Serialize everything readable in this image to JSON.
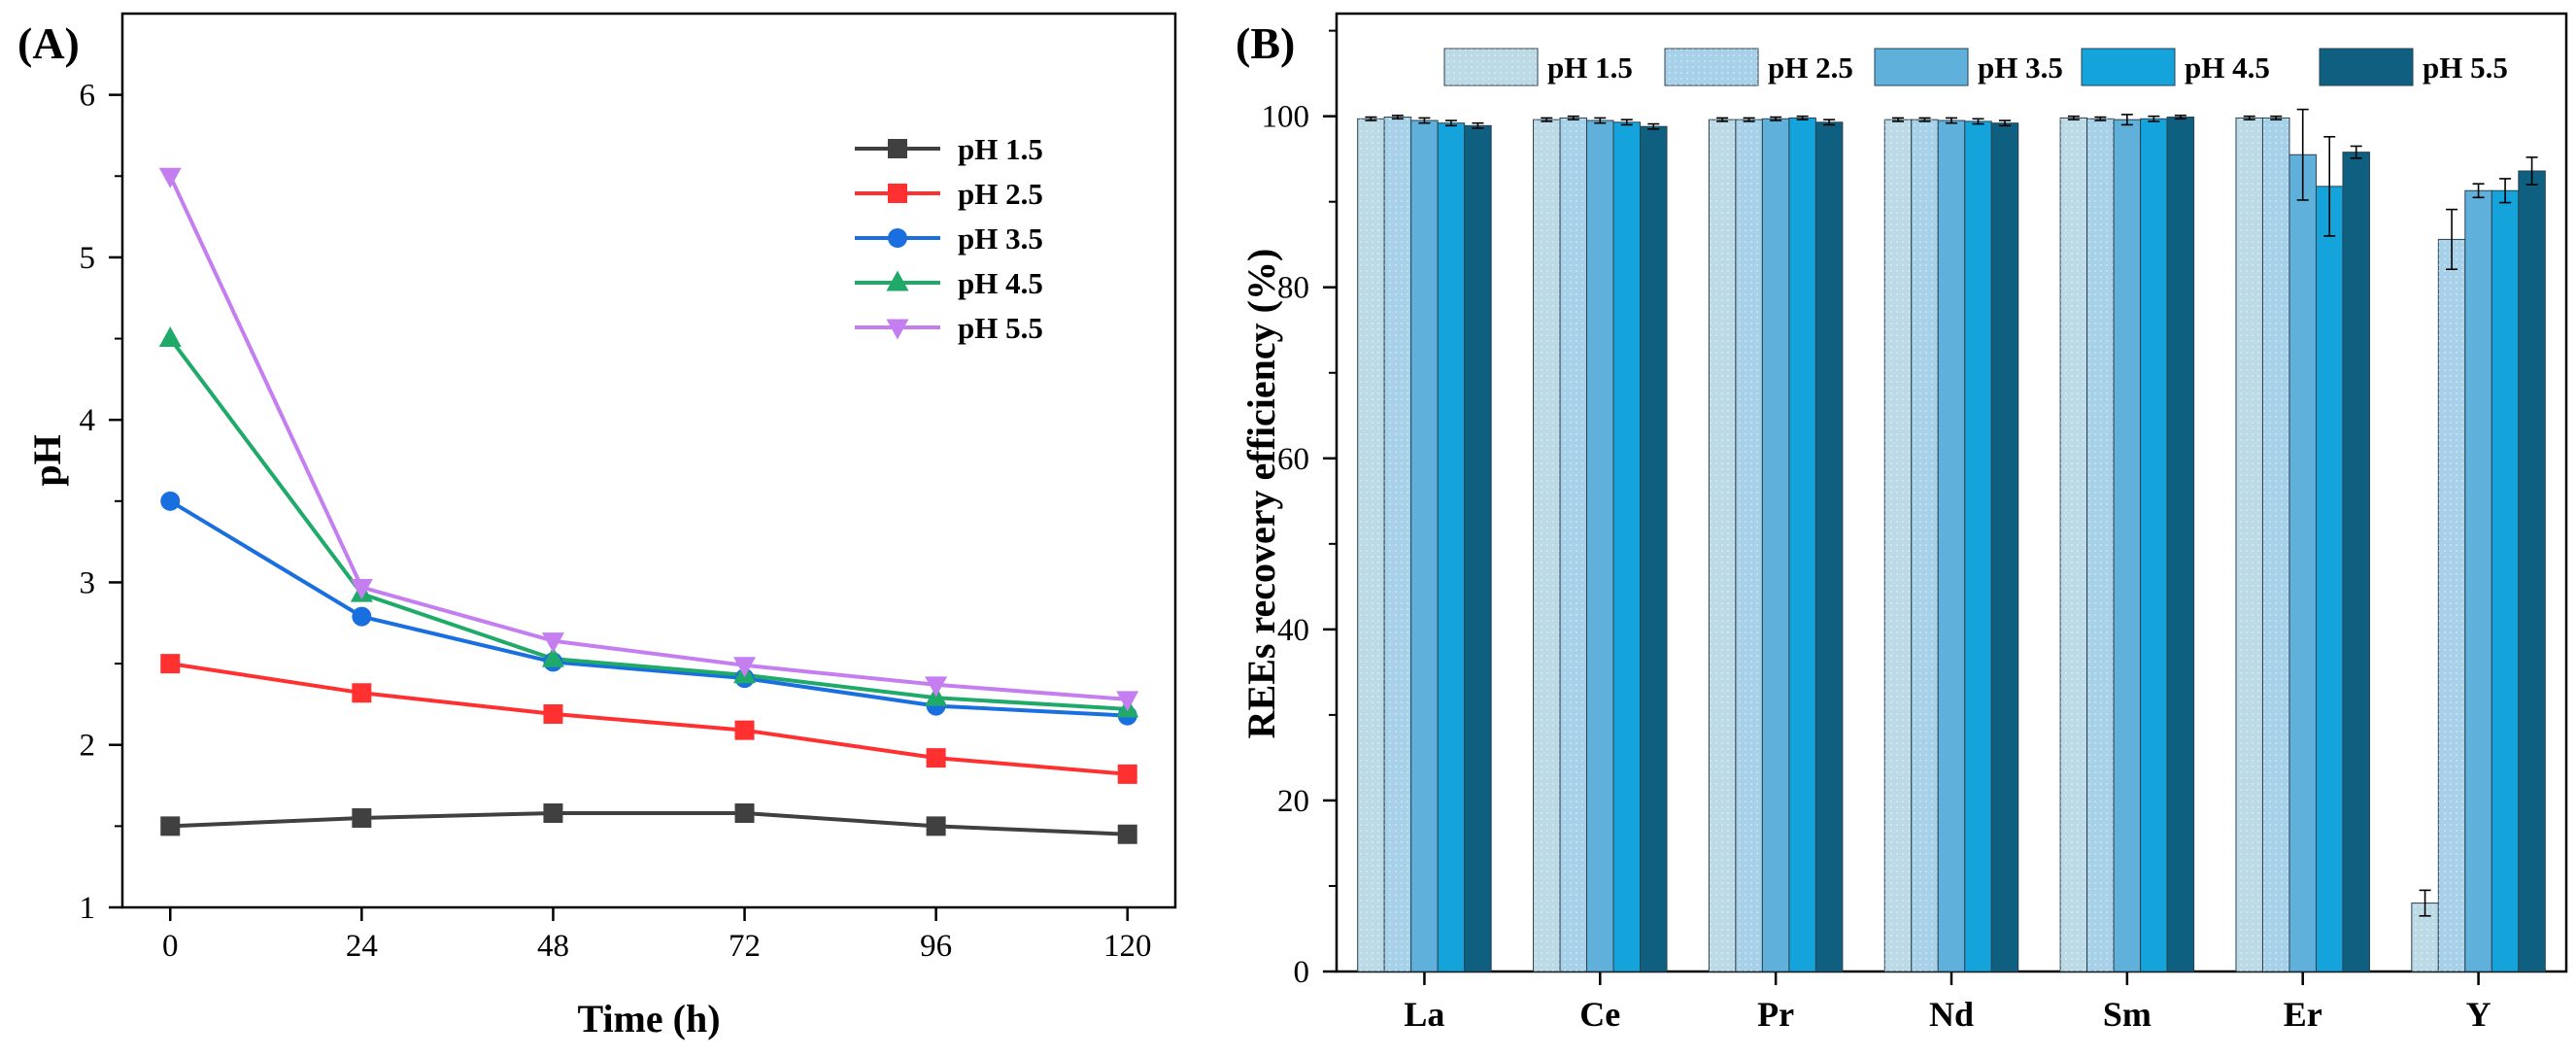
{
  "chart_data": [
    {
      "panel": "(A)",
      "type": "line",
      "xlabel": "Time (h)",
      "ylabel": "pH",
      "x": [
        0,
        24,
        48,
        72,
        96,
        120
      ],
      "xlim": [
        -6,
        126
      ],
      "ylim": [
        1,
        6.5
      ],
      "xticks": [
        0,
        24,
        48,
        72,
        96,
        120
      ],
      "yticks": [
        1,
        2,
        3,
        4,
        5,
        6
      ],
      "legend_position": "right",
      "grid": false,
      "series": [
        {
          "name": "pH 1.5",
          "color": "#404040",
          "marker": "square",
          "values": [
            1.5,
            1.55,
            1.58,
            1.58,
            1.5,
            1.45
          ]
        },
        {
          "name": "pH 2.5",
          "color": "#ff3030",
          "marker": "square",
          "values": [
            2.5,
            2.32,
            2.19,
            2.09,
            1.92,
            1.82
          ]
        },
        {
          "name": "pH 3.5",
          "color": "#1a6fe0",
          "marker": "circle",
          "values": [
            3.5,
            2.79,
            2.51,
            2.41,
            2.24,
            2.18
          ]
        },
        {
          "name": "pH 4.5",
          "color": "#1faa6a",
          "marker": "triangle-up",
          "values": [
            4.5,
            2.93,
            2.53,
            2.43,
            2.29,
            2.22
          ]
        },
        {
          "name": "pH 5.5",
          "color": "#c47ef0",
          "marker": "triangle-down",
          "values": [
            5.5,
            2.97,
            2.64,
            2.49,
            2.37,
            2.28
          ]
        }
      ]
    },
    {
      "panel": "(B)",
      "type": "bar",
      "xlabel": "",
      "ylabel": "REEs recovery efficiency (%)",
      "categories": [
        "La",
        "Ce",
        "Pr",
        "Nd",
        "Sm",
        "Er",
        "Y"
      ],
      "ylim": [
        0,
        112
      ],
      "yticks": [
        0,
        20,
        40,
        60,
        80,
        100
      ],
      "legend_position": "top",
      "grid": false,
      "series": [
        {
          "name": "pH 1.5",
          "color": "#bcd9e6",
          "pattern": "dotted",
          "values": [
            99.7,
            99.6,
            99.6,
            99.6,
            99.8,
            99.8,
            8.0
          ],
          "errors": [
            0.2,
            0.2,
            0.2,
            0.2,
            0.2,
            0.2,
            1.5
          ]
        },
        {
          "name": "pH 2.5",
          "color": "#a7d1e8",
          "pattern": "dotted",
          "values": [
            99.9,
            99.8,
            99.6,
            99.6,
            99.7,
            99.8,
            85.6
          ],
          "errors": [
            0.2,
            0.2,
            0.2,
            0.2,
            0.2,
            0.2,
            3.5
          ]
        },
        {
          "name": "pH 3.5",
          "color": "#5fb0da",
          "pattern": "",
          "values": [
            99.5,
            99.5,
            99.7,
            99.5,
            99.6,
            95.5,
            91.3
          ],
          "errors": [
            0.3,
            0.3,
            0.2,
            0.3,
            0.6,
            5.3,
            0.8
          ]
        },
        {
          "name": "pH 4.5",
          "color": "#14a3da",
          "pattern": "",
          "values": [
            99.2,
            99.3,
            99.8,
            99.4,
            99.7,
            91.8,
            91.3
          ],
          "errors": [
            0.3,
            0.3,
            0.2,
            0.3,
            0.3,
            5.8,
            1.4
          ]
        },
        {
          "name": "pH 5.5",
          "color": "#0e5f80",
          "pattern": "",
          "values": [
            98.9,
            98.8,
            99.3,
            99.2,
            99.9,
            95.8,
            93.6
          ],
          "errors": [
            0.3,
            0.3,
            0.3,
            0.3,
            0.2,
            0.7,
            1.6
          ]
        }
      ]
    }
  ]
}
